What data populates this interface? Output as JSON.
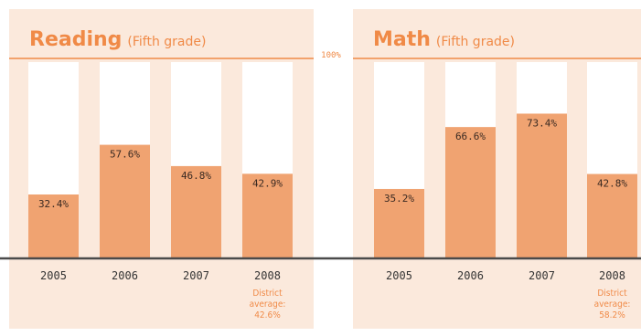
{
  "accent": "#f08a47",
  "bar_color": "#f0a371",
  "axis_max_label": "100%",
  "chart_data": [
    {
      "type": "bar",
      "title": "Reading",
      "subtitle": "(Fifth grade)",
      "categories": [
        "2005",
        "2006",
        "2007",
        "2008"
      ],
      "values": [
        32.4,
        57.6,
        46.8,
        42.9
      ],
      "value_labels": [
        "32.4%",
        "57.6%",
        "46.8%",
        "42.9%"
      ],
      "ylim": [
        0,
        100
      ],
      "district_average": {
        "category": "2008",
        "lines": [
          "District",
          "average:",
          "42.6%"
        ]
      }
    },
    {
      "type": "bar",
      "title": "Math",
      "subtitle": "(Fifth grade)",
      "categories": [
        "2005",
        "2006",
        "2007",
        "2008"
      ],
      "values": [
        35.2,
        66.6,
        73.4,
        42.8
      ],
      "value_labels": [
        "35.2%",
        "66.6%",
        "73.4%",
        "42.8%"
      ],
      "ylim": [
        0,
        100
      ],
      "district_average": {
        "category": "2008",
        "lines": [
          "District",
          "average:",
          "58.2%"
        ]
      }
    }
  ]
}
